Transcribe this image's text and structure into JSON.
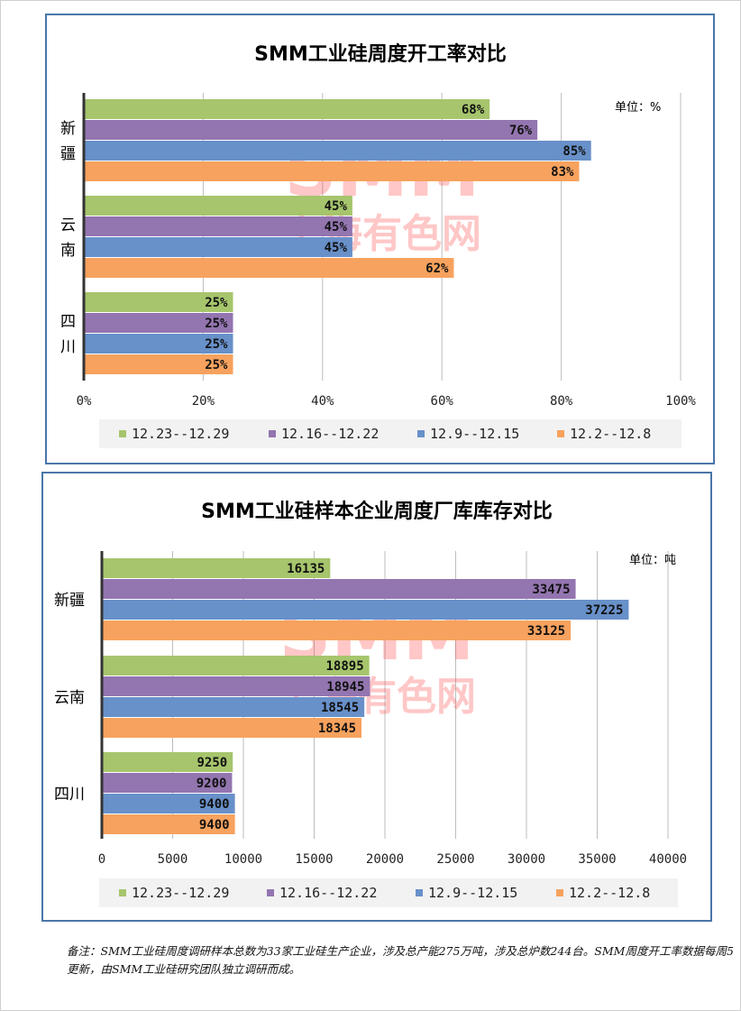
{
  "legend": [
    "12.23--12.29",
    "12.16--12.22",
    "12.9--12.15",
    "12.2--12.8"
  ],
  "colors": [
    "#a6c56c",
    "#9375b0",
    "#6890c9",
    "#f7a25e"
  ],
  "chart_data": [
    {
      "type": "bar",
      "orientation": "horizontal",
      "title": "SMM工业硅周度开工率对比",
      "unit_label": "单位：%",
      "watermark": [
        "SMM",
        "上海有色网"
      ],
      "categories": [
        [
          "新",
          "疆"
        ],
        [
          "云",
          "南"
        ],
        [
          "四",
          "川"
        ]
      ],
      "series": [
        {
          "name": "12.23--12.29",
          "values": [
            68,
            45,
            25
          ]
        },
        {
          "name": "12.16--12.22",
          "values": [
            76,
            45,
            25
          ]
        },
        {
          "name": "12.9--12.15",
          "values": [
            85,
            45,
            25
          ]
        },
        {
          "name": "12.2--12.8",
          "values": [
            83,
            62,
            25
          ]
        }
      ],
      "value_suffix": "%",
      "xlim": [
        0,
        100
      ],
      "xticks": [
        0,
        20,
        40,
        60,
        80,
        100
      ],
      "xtick_labels": [
        "0%",
        "20%",
        "40%",
        "60%",
        "80%",
        "100%"
      ],
      "grid": true,
      "legend_position": "bottom"
    },
    {
      "type": "bar",
      "orientation": "horizontal",
      "title": "SMM工业硅样本企业周度厂库库存对比",
      "unit_label": "单位：吨",
      "watermark": [
        "SMM",
        "上海有色网"
      ],
      "categories": [
        [
          "新疆"
        ],
        [
          "云南"
        ],
        [
          "四川"
        ]
      ],
      "series": [
        {
          "name": "12.23--12.29",
          "values": [
            16135,
            18895,
            9250
          ]
        },
        {
          "name": "12.16--12.22",
          "values": [
            33475,
            18945,
            9200
          ]
        },
        {
          "name": "12.9--12.15",
          "values": [
            37225,
            18545,
            9400
          ]
        },
        {
          "name": "12.2--12.8",
          "values": [
            33125,
            18345,
            9400
          ]
        }
      ],
      "value_suffix": "",
      "xlim": [
        0,
        40000
      ],
      "xticks": [
        0,
        5000,
        10000,
        15000,
        20000,
        25000,
        30000,
        35000,
        40000
      ],
      "xtick_labels": [
        "0",
        "5000",
        "10000",
        "15000",
        "20000",
        "25000",
        "30000",
        "35000",
        "40000"
      ],
      "grid": true,
      "legend_position": "bottom"
    }
  ],
  "footnote": "备注：SMM工业硅周度调研样本总数为33家工业硅生产企业，涉及总产能275万吨，涉及总炉数244台。SMM周度开工率数据每周5更新，由SMM工业硅研究团队独立调研而成。"
}
